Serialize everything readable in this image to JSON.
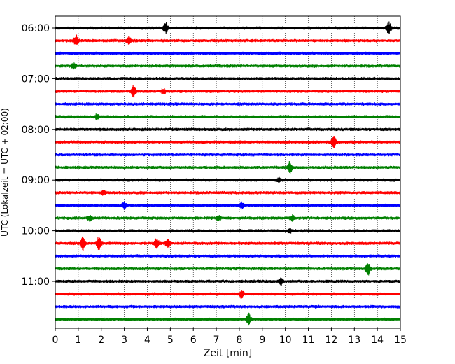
{
  "chart_data": {
    "type": "line",
    "title": "",
    "xlabel": "Zeit  [min]",
    "ylabel": "UTC (Lokalzeit = UTC + 02:00)",
    "xlim": [
      0,
      15
    ],
    "x_ticks": [
      "0",
      "1",
      "2",
      "3",
      "4",
      "5",
      "6",
      "7",
      "8",
      "9",
      "10",
      "11",
      "12",
      "13",
      "14",
      "15"
    ],
    "y_ticks": [
      "06:00",
      "07:00",
      "08:00",
      "09:00",
      "10:00",
      "11:00"
    ],
    "grid": "vertical dotted",
    "trace_interval_min": 15,
    "colors": [
      "#000000",
      "#ff0000",
      "#0000ff",
      "#008000"
    ],
    "traces": [
      {
        "start": "06:00",
        "color": "#000000",
        "events": [
          [
            4.8,
            0.9
          ],
          [
            14.5,
            0.9
          ]
        ]
      },
      {
        "start": "06:15",
        "color": "#ff0000",
        "events": [
          [
            0.9,
            0.8
          ],
          [
            3.2,
            0.6
          ]
        ]
      },
      {
        "start": "06:30",
        "color": "#0000ff",
        "events": []
      },
      {
        "start": "06:45",
        "color": "#008000",
        "events": [
          [
            0.8,
            0.4
          ]
        ]
      },
      {
        "start": "07:00",
        "color": "#000000",
        "events": []
      },
      {
        "start": "07:15",
        "color": "#ff0000",
        "events": [
          [
            3.4,
            1.0
          ],
          [
            4.7,
            0.4
          ]
        ]
      },
      {
        "start": "07:30",
        "color": "#0000ff",
        "events": []
      },
      {
        "start": "07:45",
        "color": "#008000",
        "events": [
          [
            1.8,
            0.4
          ]
        ]
      },
      {
        "start": "08:00",
        "color": "#000000",
        "events": []
      },
      {
        "start": "08:15",
        "color": "#ff0000",
        "events": [
          [
            12.1,
            1.0
          ]
        ]
      },
      {
        "start": "08:30",
        "color": "#0000ff",
        "events": []
      },
      {
        "start": "08:45",
        "color": "#008000",
        "events": [
          [
            10.2,
            0.9
          ]
        ]
      },
      {
        "start": "09:00",
        "color": "#000000",
        "events": [
          [
            9.7,
            0.3
          ]
        ]
      },
      {
        "start": "09:15",
        "color": "#ff0000",
        "events": [
          [
            2.1,
            0.3
          ]
        ]
      },
      {
        "start": "09:30",
        "color": "#0000ff",
        "events": [
          [
            3.0,
            0.5
          ],
          [
            8.1,
            0.5
          ]
        ]
      },
      {
        "start": "09:45",
        "color": "#008000",
        "events": [
          [
            1.5,
            0.4
          ],
          [
            7.1,
            0.4
          ],
          [
            10.3,
            0.4
          ]
        ]
      },
      {
        "start": "10:00",
        "color": "#000000",
        "events": [
          [
            10.2,
            0.3
          ]
        ]
      },
      {
        "start": "10:15",
        "color": "#ff0000",
        "events": [
          [
            1.2,
            1.0
          ],
          [
            1.9,
            1.1
          ],
          [
            4.4,
            0.8
          ],
          [
            4.9,
            0.8
          ]
        ]
      },
      {
        "start": "10:30",
        "color": "#0000ff",
        "events": []
      },
      {
        "start": "10:45",
        "color": "#008000",
        "events": [
          [
            13.6,
            1.0
          ]
        ]
      },
      {
        "start": "11:00",
        "color": "#000000",
        "events": [
          [
            9.8,
            0.5
          ]
        ]
      },
      {
        "start": "11:15",
        "color": "#ff0000",
        "events": [
          [
            8.1,
            0.6
          ]
        ]
      },
      {
        "start": "11:30",
        "color": "#0000ff",
        "events": []
      },
      {
        "start": "11:45",
        "color": "#008000",
        "events": [
          [
            8.4,
            1.0
          ]
        ]
      }
    ]
  }
}
